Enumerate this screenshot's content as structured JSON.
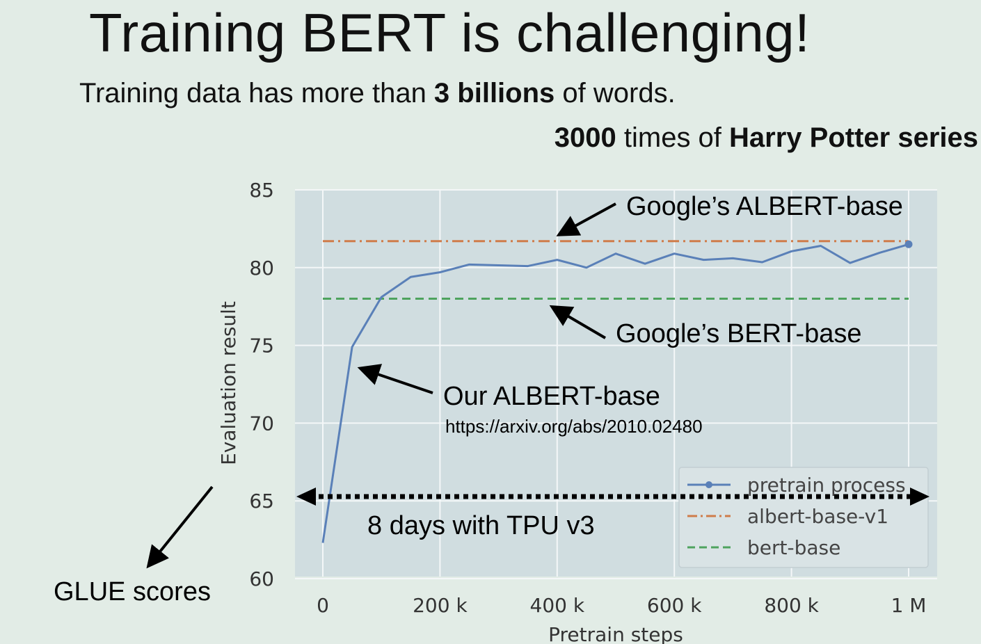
{
  "slide": {
    "title": "Training BERT is challenging!",
    "line1": {
      "pre": "Training data has more than ",
      "bold": "3 billions",
      "post": " of words."
    },
    "line2": {
      "bold1": "3000",
      "mid": " times of ",
      "bold2": "Harry Potter series"
    }
  },
  "annotations": {
    "google_albert": "Google’s ALBERT-base",
    "google_bert": "Google’s BERT-base",
    "our_albert": "Our ALBERT-base",
    "url": "https://arxiv.org/abs/2010.02480",
    "duration": "8 days with TPU v3",
    "glue": "GLUE scores"
  },
  "colors": {
    "background": "#e2ece6",
    "plot_bg": "#d0dde0",
    "pretrain": "#5a80b8",
    "albert": "#cf7c4a",
    "bert": "#4ea35e"
  },
  "chart_data": {
    "type": "line",
    "xlabel": "Pretrain steps",
    "ylabel": "Evaluation result",
    "xlim": [
      0,
      1000
    ],
    "ylim": [
      60,
      85
    ],
    "x_ticks": [
      {
        "value": 0,
        "label": "0"
      },
      {
        "value": 200,
        "label": "200 k"
      },
      {
        "value": 400,
        "label": "400 k"
      },
      {
        "value": 600,
        "label": "600 k"
      },
      {
        "value": 800,
        "label": "800 k"
      },
      {
        "value": 1000,
        "label": "1 M"
      }
    ],
    "y_ticks": [
      60,
      65,
      70,
      75,
      80,
      85
    ],
    "grid": true,
    "legend_position": "lower-right",
    "series": [
      {
        "name": "pretrain process",
        "style": "solid",
        "x": [
          0,
          50,
          100,
          150,
          200,
          250,
          300,
          350,
          400,
          450,
          500,
          550,
          600,
          650,
          700,
          750,
          800,
          850,
          900,
          950,
          1000
        ],
        "y": [
          62.3,
          74.9,
          78.1,
          79.4,
          79.7,
          80.2,
          80.15,
          80.1,
          80.5,
          80.0,
          80.9,
          80.25,
          80.9,
          80.5,
          80.6,
          80.35,
          81.05,
          81.4,
          80.3,
          80.95,
          81.5
        ]
      },
      {
        "name": "albert-base-v1",
        "style": "dashdot",
        "x": [
          0,
          1000
        ],
        "y": [
          81.7,
          81.7
        ]
      },
      {
        "name": "bert-base",
        "style": "dashed",
        "x": [
          0,
          1000
        ],
        "y": [
          78.0,
          78.0
        ]
      }
    ]
  }
}
